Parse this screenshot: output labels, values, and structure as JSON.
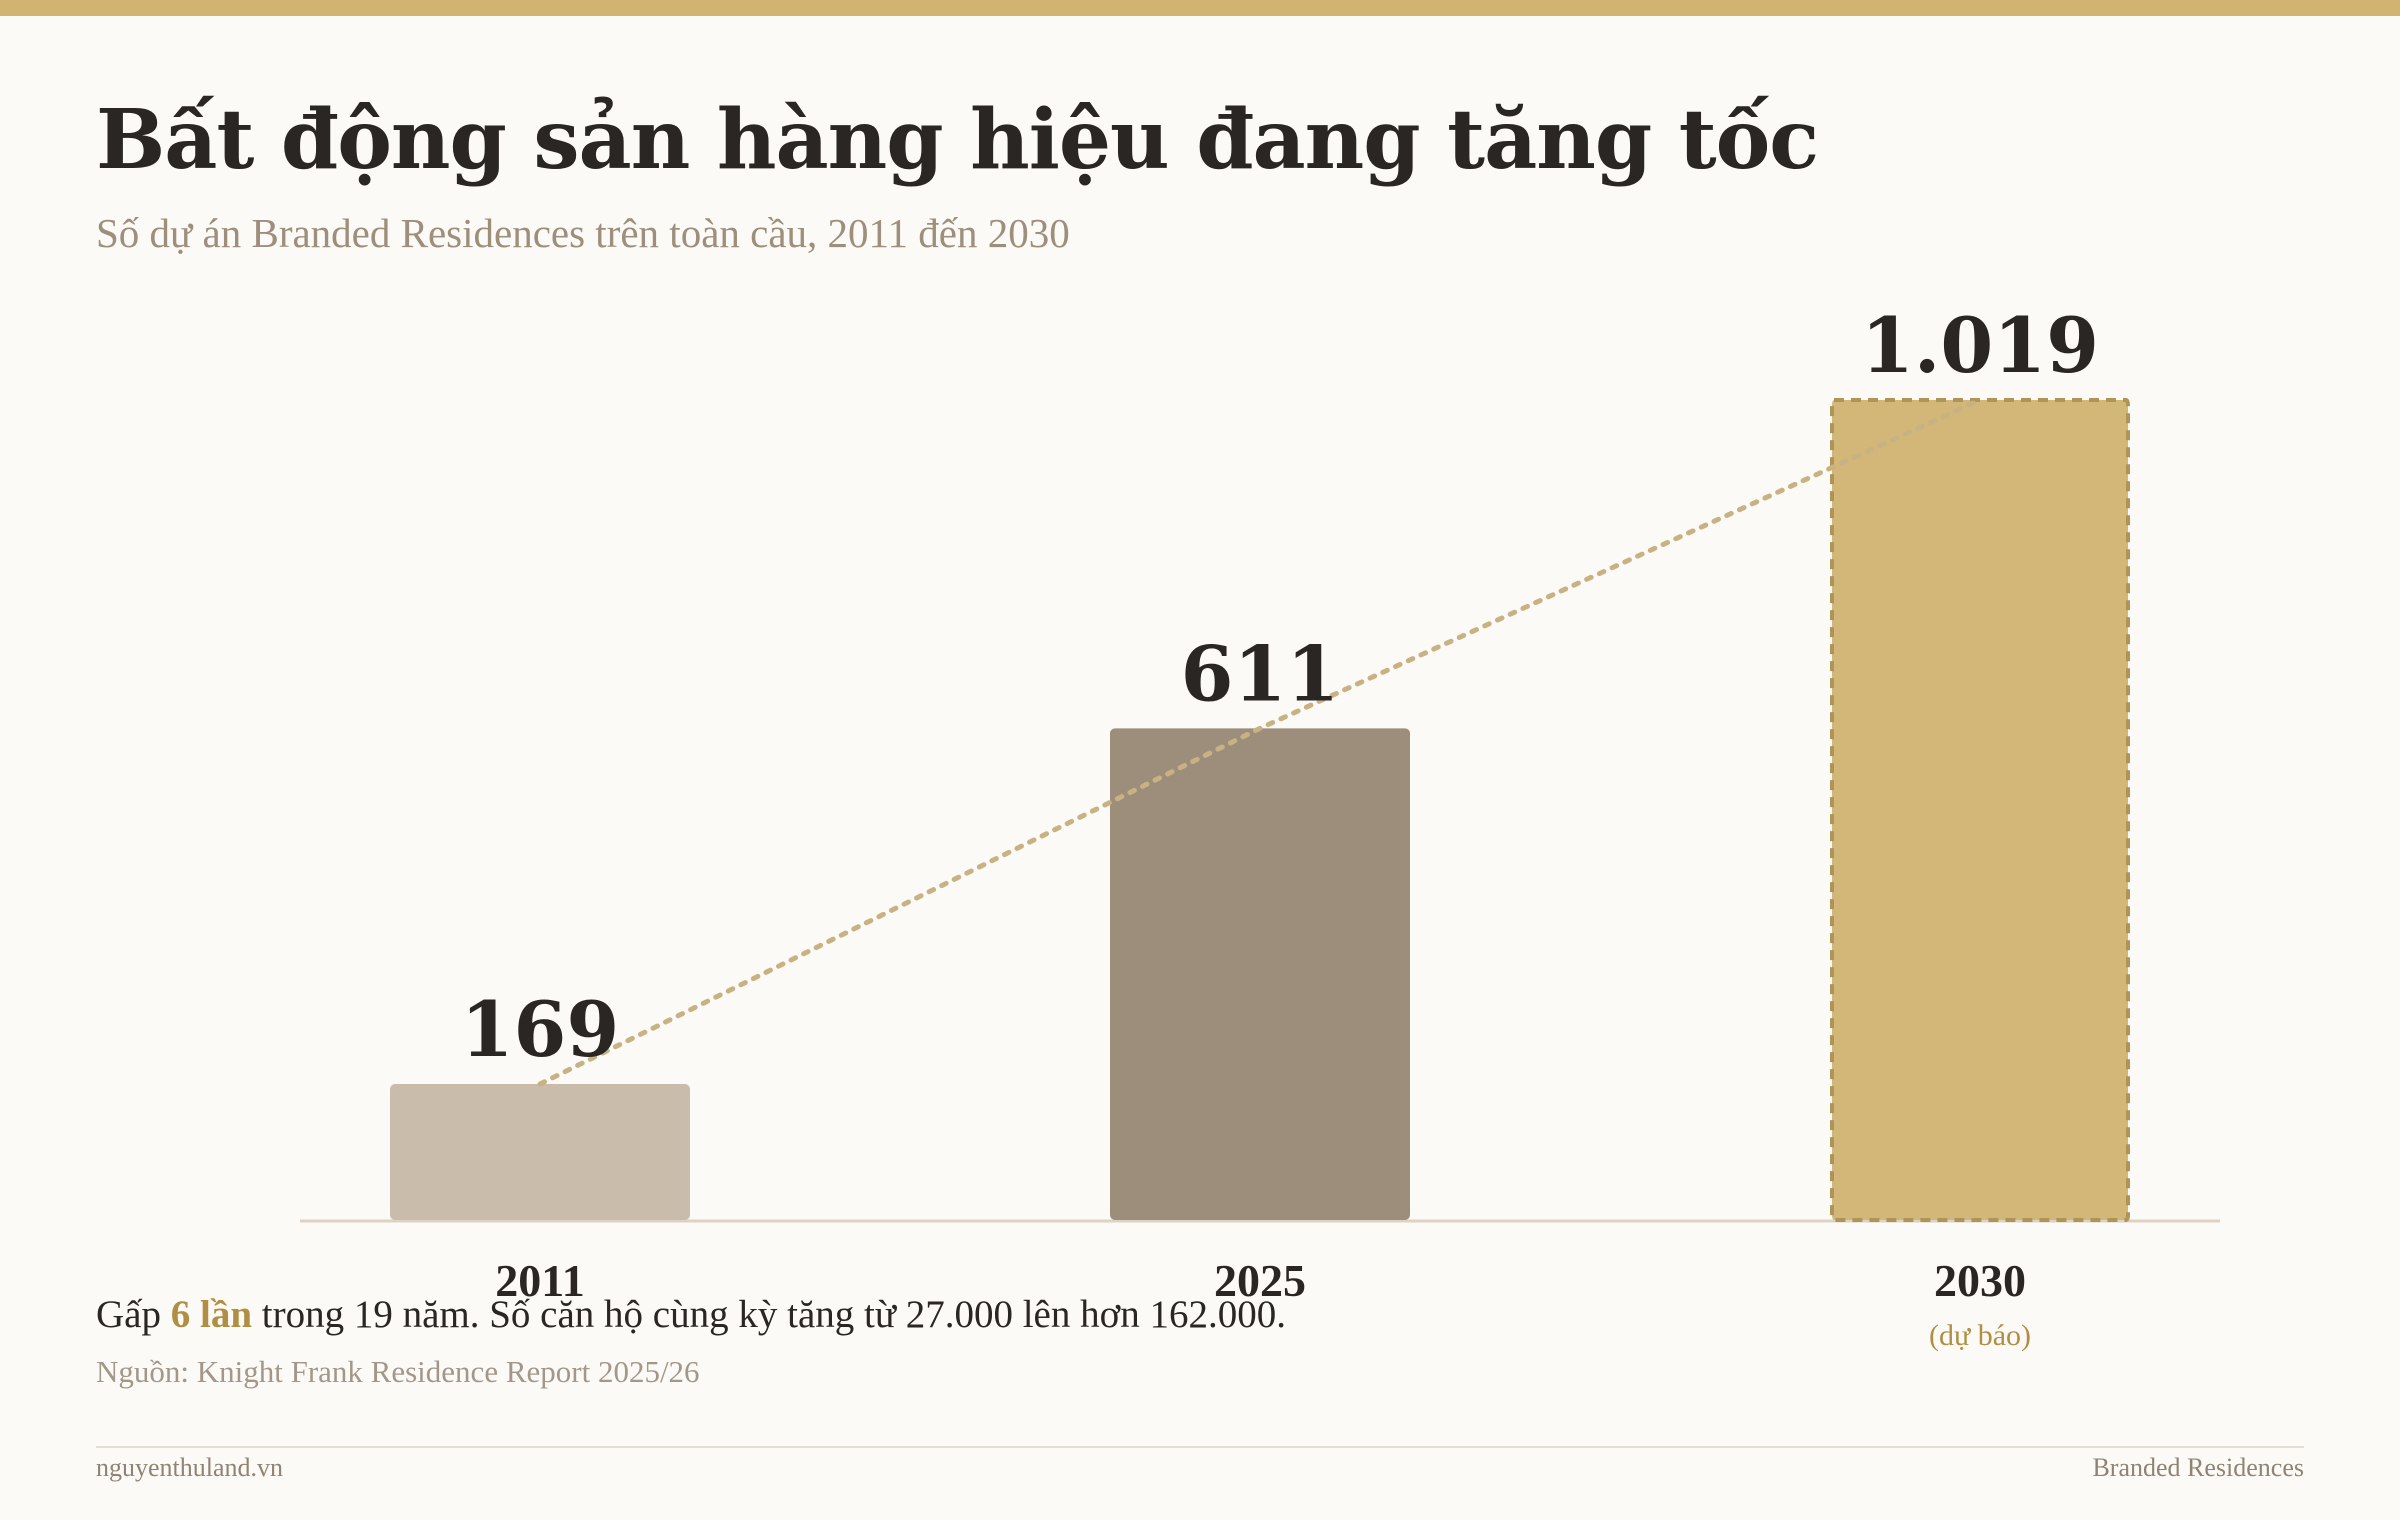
{
  "header": {
    "title": "Bất động sản hàng hiệu đang tăng tốc",
    "subtitle": "Số dự án Branded Residences trên toàn cầu, 2011 đến 2030"
  },
  "chart_data": {
    "type": "bar",
    "categories": [
      "2011",
      "2025",
      "2030"
    ],
    "values": [
      169,
      611,
      1019
    ],
    "value_labels": [
      "169",
      "611",
      "1.019"
    ],
    "category_notes": [
      "",
      "",
      "(dự báo)"
    ],
    "bar_colors": [
      "#c9bcaa",
      "#9c8e7b",
      "#d2b779"
    ],
    "forecast": [
      false,
      false,
      true
    ],
    "trend_line": true,
    "grid": false,
    "legend": "none",
    "ylim": [
      0,
      1019
    ]
  },
  "note": {
    "prefix": "Gấp ",
    "highlight": "6 lần",
    "suffix": " trong 19 năm. Số căn hộ cùng kỳ tăng từ 27.000 lên hơn 162.000."
  },
  "source": "Nguồn: Knight Frank Residence Report 2025/26",
  "footer": {
    "left": "nguyenthuland.vn",
    "right": "Branded Residences"
  },
  "colors": {
    "accent": "#d2b472",
    "highlight": "#b08f45",
    "trend": "#c8b284",
    "baseline": "#dcd3c4",
    "text": "#2a2623"
  }
}
